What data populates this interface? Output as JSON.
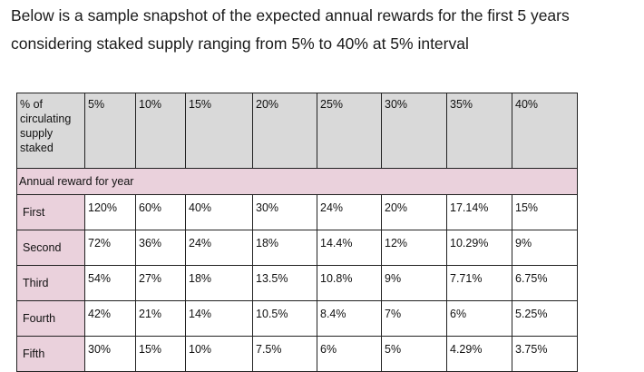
{
  "intro": {
    "line1": "Below is a sample snapshot of the expected annual rewards for the first 5 years",
    "line2": "considering staked supply ranging from 5% to 40% at 5% interval"
  },
  "table": {
    "corner_header": "% of circulating supply staked",
    "columns": [
      "5%",
      "10%",
      "15%",
      "20%",
      "25%",
      "30%",
      "35%",
      "40%"
    ],
    "section_label": "Annual reward for year",
    "rows": [
      {
        "label": "First",
        "values": [
          "120%",
          "60%",
          "40%",
          "30%",
          "24%",
          "20%",
          "17.14%",
          "15%"
        ]
      },
      {
        "label": "Second",
        "values": [
          "72%",
          "36%",
          "24%",
          "18%",
          "14.4%",
          "12%",
          "10.29%",
          "9%"
        ]
      },
      {
        "label": "Third",
        "values": [
          "54%",
          "27%",
          "18%",
          "13.5%",
          "10.8%",
          "9%",
          "7.71%",
          "6.75%"
        ]
      },
      {
        "label": "Fourth",
        "values": [
          "42%",
          "21%",
          "14%",
          "10.5%",
          "8.4%",
          "7%",
          "6%",
          "5.25%"
        ]
      },
      {
        "label": "Fifth",
        "values": [
          "30%",
          "15%",
          "10%",
          "7.5%",
          "6%",
          "5%",
          "4.29%",
          "3.75%"
        ]
      }
    ],
    "colors": {
      "header_bg": "#d9d9d9",
      "pink_bg": "#ead1dc",
      "border": "#222222"
    }
  }
}
